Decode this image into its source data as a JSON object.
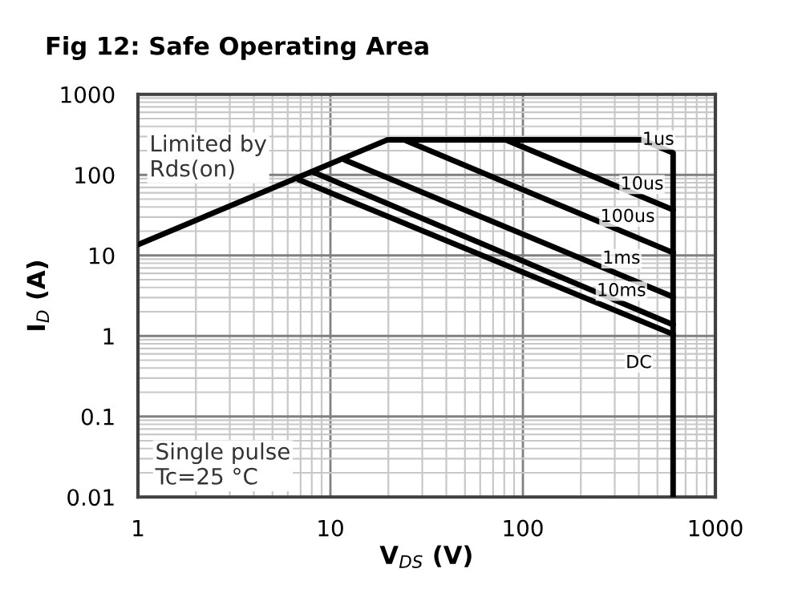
{
  "chart_data": {
    "type": "line",
    "title": "Fig 12: Safe Operating Area",
    "xlabel": "V$_{DS}$ (V)",
    "ylabel": "I$_{D}$ (A)",
    "log": "xy",
    "grid": true,
    "marker": "none",
    "line_style": "solid",
    "xlim": [
      1,
      1000
    ],
    "xticks": [
      1,
      10,
      100,
      1000
    ],
    "ylim": [
      0.01,
      1000
    ],
    "yticks": [
      0.01,
      0.1,
      1,
      10,
      100,
      1000
    ],
    "series": [
      {
        "color": "#000000",
        "x": [
          1,
          19.7,
          416,
          603,
          603
        ],
        "values": [
          13.6,
          272,
          272,
          188,
          0.01
        ]
      },
      {
        "color": "#000000",
        "x": [
          81.5,
          603
        ],
        "values": [
          272,
          36.8
        ]
      },
      {
        "color": "#000000",
        "x": [
          24.2,
          603
        ],
        "values": [
          272,
          10.8
        ]
      },
      {
        "color": "#000000",
        "x": [
          11.9,
          603
        ],
        "values": [
          153,
          3.06
        ]
      },
      {
        "color": "#000000",
        "x": [
          8.15,
          603
        ],
        "values": [
          108,
          1.38
        ]
      },
      {
        "color": "#000000",
        "x": [
          6.85,
          603
        ],
        "values": [
          87,
          1.05
        ]
      }
    ],
    "annotations": [
      "Limited by\nRds(on)",
      "Single pulse\nTc=25 °C",
      {
        "text": "1us",
        "x": 505,
        "y": 272
      },
      {
        "text": "10us",
        "x": 416,
        "y": 76
      },
      {
        "text": "100us",
        "x": 350,
        "y": 30
      },
      {
        "text": "1ms",
        "x": 325,
        "y": 9.1
      },
      {
        "text": "10ms",
        "x": 325,
        "y": 3.6
      },
      {
        "text": "DC",
        "x": 400,
        "y": 0.46
      }
    ]
  }
}
